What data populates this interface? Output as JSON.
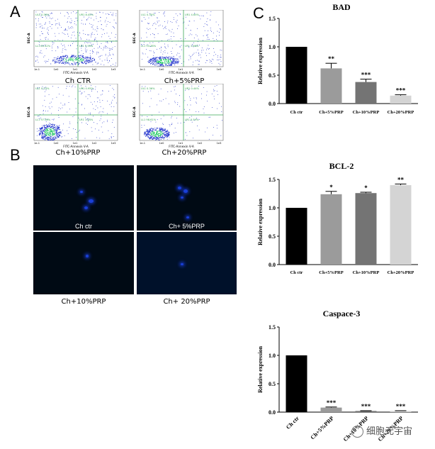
{
  "panels": {
    "a": "A",
    "b": "B",
    "c": "C"
  },
  "flow": {
    "plots": [
      {
        "caption": "Ch CTR",
        "y_label": "SSC-A",
        "x_label": "FITC-Annexin V-A",
        "q_ul": "UL1 0.58%",
        "q_ur": "UR1 8.45%",
        "q_ll": "LL1 85.42%",
        "q_lr": "LR1 5.55%"
      },
      {
        "caption": "Ch+5%PRP",
        "y_label": "SSC-A",
        "x_label": "FITC-Annexin V-A",
        "q_ul": "UL1 0.30%",
        "q_ur": "UR1 4.65%",
        "q_ll": "LL1 93.38%",
        "q_lr": "LR1 1.66%"
      },
      {
        "caption": "Ch+10%PRP",
        "y_label": "SSC-A",
        "x_label": "FITC-Annexin V-A",
        "q_ul": "UL1 0.23%",
        "q_ur": "UR1 0.95%",
        "q_ll": "LL1 97.58%",
        "q_lr": "LR1 1.24%"
      },
      {
        "caption": "Ch+20%PRP",
        "y_label": "SSC-A",
        "x_label": "FITC-Annexin V-A",
        "q_ul": "UL1 0.36%",
        "q_ur": "UR1 0.44%",
        "q_ll": "LL1 98.61%",
        "q_lr": "LR1 0.59%"
      }
    ],
    "axis_ticks": [
      "1e-1",
      "1e0",
      "1e1",
      "1e2",
      "1e3"
    ],
    "colors": {
      "dots": "#2233cc",
      "dense": "#17c95a",
      "gate": "#3aa657"
    }
  },
  "micro": {
    "captions": [
      "Ch ctr",
      "Ch+ 5%PRP",
      "Ch+10%PRP",
      "Ch+ 20%PRP"
    ],
    "color": "#1a3fd6"
  },
  "chart_data": [
    {
      "type": "bar",
      "title": "BAD",
      "ylabel": "Relative expression",
      "categories": [
        "Ch ctr",
        "Ch+5%PRP",
        "Ch+10%PRP",
        "Ch+20%PRP"
      ],
      "values": [
        1.0,
        0.62,
        0.38,
        0.14
      ],
      "errors": [
        0.0,
        0.09,
        0.05,
        0.015
      ],
      "significance": [
        "",
        "**",
        "***",
        "***"
      ],
      "colors": [
        "#000000",
        "#9b9b9b",
        "#747474",
        "#d4d4d4"
      ],
      "ylim": [
        0,
        1.5
      ],
      "yticks": [
        "0.0",
        "0.5",
        "1.0",
        "1.5"
      ]
    },
    {
      "type": "bar",
      "title": "BCL-2",
      "ylabel": "Relative expression",
      "categories": [
        "Ch ctr",
        "Ch+5%PRP",
        "Ch+10%PRP",
        "Ch+20%PRP"
      ],
      "values": [
        1.0,
        1.24,
        1.26,
        1.4
      ],
      "errors": [
        0.0,
        0.05,
        0.015,
        0.02
      ],
      "significance": [
        "",
        "*",
        "*",
        "**"
      ],
      "colors": [
        "#000000",
        "#9b9b9b",
        "#747474",
        "#d4d4d4"
      ],
      "ylim": [
        0,
        1.5
      ],
      "yticks": [
        "0.0",
        "0.5",
        "1.0",
        "1.5"
      ]
    },
    {
      "type": "bar",
      "title": "Caspace-3",
      "ylabel": "Relative expression",
      "categories": [
        "Ch ctr",
        "Ch+5%PRP",
        "Ch+10%PRP",
        "Ch+20%PRP"
      ],
      "values": [
        1.0,
        0.08,
        0.02,
        0.02
      ],
      "errors": [
        0.0,
        0.01,
        0.005,
        0.005
      ],
      "significance": [
        "",
        "***",
        "***",
        "***"
      ],
      "colors": [
        "#000000",
        "#9b9b9b",
        "#747474",
        "#d4d4d4"
      ],
      "ylim": [
        0,
        1.5
      ],
      "yticks": [
        "0.0",
        "0.5",
        "1.0",
        "1.5"
      ]
    }
  ],
  "watermark": "细胞元宇宙"
}
